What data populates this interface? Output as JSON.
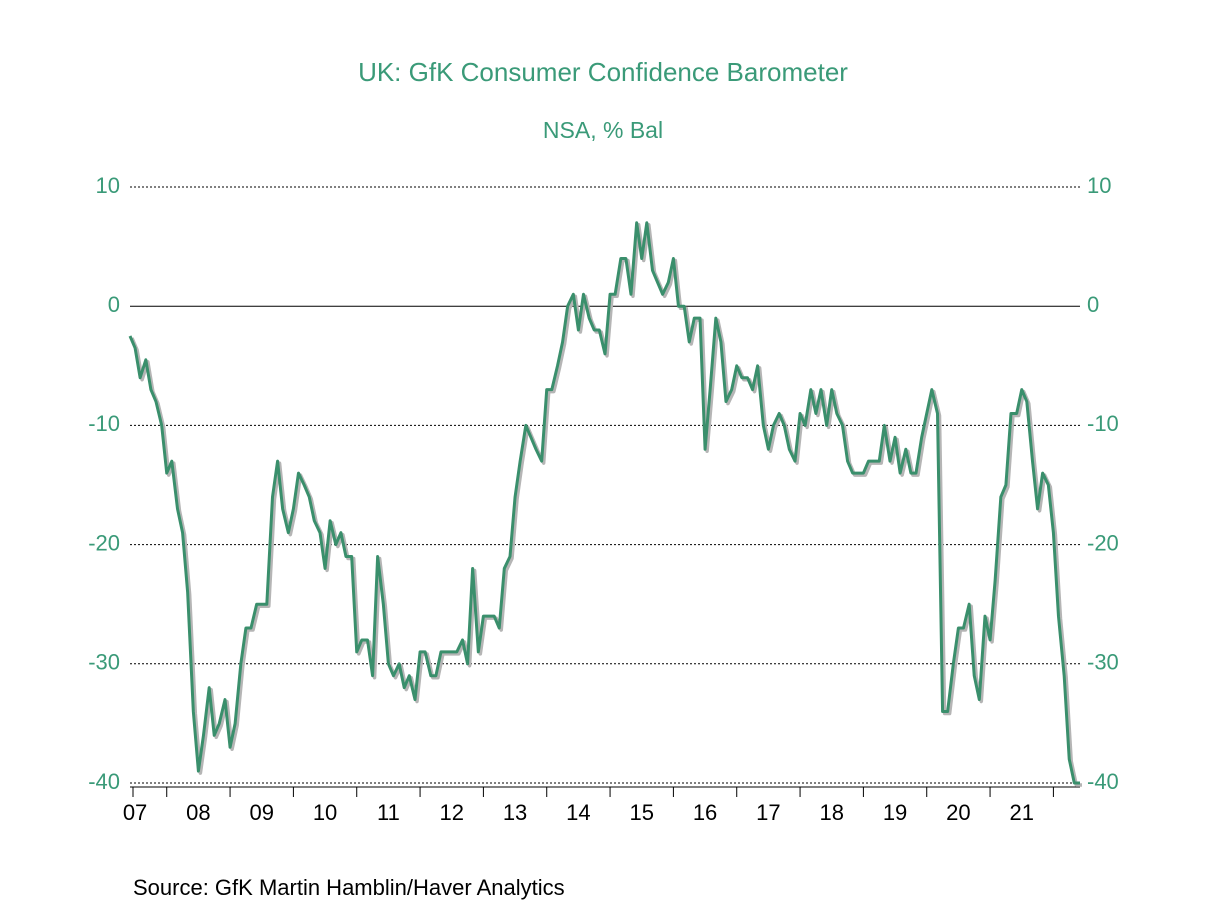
{
  "chart_data": {
    "type": "line",
    "title": "UK: GfK Consumer Confidence Barometer",
    "subtitle": "NSA, % Bal",
    "source": "Source:  GfK Martin Hamblin/Haver Analytics",
    "grid": true,
    "ylim": [
      -40,
      10
    ],
    "yticks": [
      10,
      0,
      -10,
      -20,
      -30,
      -40
    ],
    "xlim": [
      2007.42,
      2022.42
    ],
    "xticks": [
      {
        "value": 2007.5,
        "label": "07"
      },
      {
        "value": 2008.5,
        "label": "08"
      },
      {
        "value": 2009.5,
        "label": "09"
      },
      {
        "value": 2010.5,
        "label": "10"
      },
      {
        "value": 2011.5,
        "label": "11"
      },
      {
        "value": 2012.5,
        "label": "12"
      },
      {
        "value": 2013.5,
        "label": "13"
      },
      {
        "value": 2014.5,
        "label": "14"
      },
      {
        "value": 2015.5,
        "label": "15"
      },
      {
        "value": 2016.5,
        "label": "16"
      },
      {
        "value": 2017.5,
        "label": "17"
      },
      {
        "value": 2018.5,
        "label": "18"
      },
      {
        "value": 2019.5,
        "label": "19"
      },
      {
        "value": 2020.5,
        "label": "20"
      },
      {
        "value": 2021.5,
        "label": "21"
      }
    ],
    "x": [
      2007.42,
      2007.5,
      2007.58,
      2007.67,
      2007.75,
      2007.83,
      2007.92,
      2008,
      2008.08,
      2008.17,
      2008.25,
      2008.33,
      2008.42,
      2008.5,
      2008.58,
      2008.67,
      2008.75,
      2008.83,
      2008.92,
      2009,
      2009.08,
      2009.17,
      2009.25,
      2009.33,
      2009.42,
      2009.5,
      2009.58,
      2009.67,
      2009.75,
      2009.83,
      2009.92,
      2010,
      2010.08,
      2010.17,
      2010.25,
      2010.33,
      2010.42,
      2010.5,
      2010.58,
      2010.67,
      2010.75,
      2010.83,
      2010.92,
      2011,
      2011.08,
      2011.17,
      2011.25,
      2011.33,
      2011.42,
      2011.5,
      2011.58,
      2011.67,
      2011.75,
      2011.83,
      2011.92,
      2012,
      2012.08,
      2012.17,
      2012.25,
      2012.33,
      2012.42,
      2012.5,
      2012.58,
      2012.67,
      2012.75,
      2012.83,
      2012.92,
      2013,
      2013.08,
      2013.17,
      2013.25,
      2013.33,
      2013.42,
      2013.5,
      2013.58,
      2013.67,
      2013.75,
      2013.83,
      2013.92,
      2014,
      2014.08,
      2014.17,
      2014.25,
      2014.33,
      2014.42,
      2014.5,
      2014.58,
      2014.67,
      2014.75,
      2014.83,
      2014.92,
      2015,
      2015.08,
      2015.17,
      2015.25,
      2015.33,
      2015.42,
      2015.5,
      2015.58,
      2015.67,
      2015.75,
      2015.83,
      2015.92,
      2016,
      2016.08,
      2016.17,
      2016.25,
      2016.33,
      2016.42,
      2016.5,
      2016.58,
      2016.67,
      2016.75,
      2016.83,
      2016.92,
      2017,
      2017.08,
      2017.17,
      2017.25,
      2017.33,
      2017.42,
      2017.5,
      2017.58,
      2017.67,
      2017.75,
      2017.83,
      2017.92,
      2018,
      2018.08,
      2018.17,
      2018.25,
      2018.33,
      2018.42,
      2018.5,
      2018.58,
      2018.67,
      2018.75,
      2018.83,
      2018.92,
      2019,
      2019.08,
      2019.17,
      2019.25,
      2019.33,
      2019.42,
      2019.5,
      2019.58,
      2019.67,
      2019.75,
      2019.83,
      2019.92,
      2020,
      2020.08,
      2020.17,
      2020.25,
      2020.33,
      2020.42,
      2020.5,
      2020.58,
      2020.67,
      2020.75,
      2020.83,
      2020.92,
      2021,
      2021.08,
      2021.17,
      2021.25,
      2021.33,
      2021.42,
      2021.5,
      2021.58,
      2021.67,
      2021.75,
      2021.83,
      2021.92,
      2022,
      2022.08,
      2022.17,
      2022.25,
      2022.33,
      2022.42
    ],
    "series": [
      {
        "color": "#3a8f6c",
        "values": [
          -2.5,
          -3.5,
          -6,
          -4.5,
          -7,
          -8,
          -10,
          -14,
          -13,
          -17,
          -19,
          -24,
          -34,
          -39,
          -36,
          -32,
          -36,
          -35,
          -33,
          -37,
          -35,
          -30,
          -27,
          -27,
          -25,
          -25,
          -25,
          -16,
          -13,
          -17,
          -19,
          -17,
          -14,
          -15,
          -16,
          -18,
          -19,
          -22,
          -18,
          -20,
          -19,
          -21,
          -21,
          -29,
          -28,
          -28,
          -31,
          -21,
          -25,
          -30,
          -31,
          -30,
          -32,
          -31,
          -33,
          -29,
          -29,
          -31,
          -31,
          -29,
          -29,
          -29,
          -29,
          -28,
          -30,
          -22,
          -29,
          -26,
          -26,
          -26,
          -27,
          -22,
          -21,
          -16,
          -13,
          -10,
          -11,
          -12,
          -13,
          -7,
          -7,
          -5,
          -3,
          0,
          1,
          -2,
          1,
          -1,
          -2,
          -2,
          -4,
          1,
          1,
          4,
          4,
          1,
          7,
          4,
          7,
          3,
          2,
          1,
          2,
          4,
          0,
          0,
          -3,
          -1,
          -1,
          -12,
          -7,
          -1,
          -3,
          -8,
          -7,
          -5,
          -6,
          -6,
          -7,
          -5,
          -10,
          -12,
          -10,
          -9,
          -10,
          -12,
          -13,
          -9,
          -10,
          -7,
          -9,
          -7,
          -10,
          -7,
          -9,
          -10,
          -13,
          -14,
          -14,
          -14,
          -13,
          -13,
          -13,
          -10,
          -13,
          -11,
          -14,
          -12,
          -14,
          -14,
          -11,
          -9,
          -7,
          -9,
          -34,
          -34,
          -30,
          -27,
          -27,
          -25,
          -31,
          -33,
          -26,
          -28,
          -23,
          -16,
          -15,
          -9,
          -9,
          -7,
          -8,
          -13,
          -17,
          -14,
          -15,
          -19,
          -26,
          -31,
          -38,
          -40,
          -40
        ]
      }
    ]
  }
}
